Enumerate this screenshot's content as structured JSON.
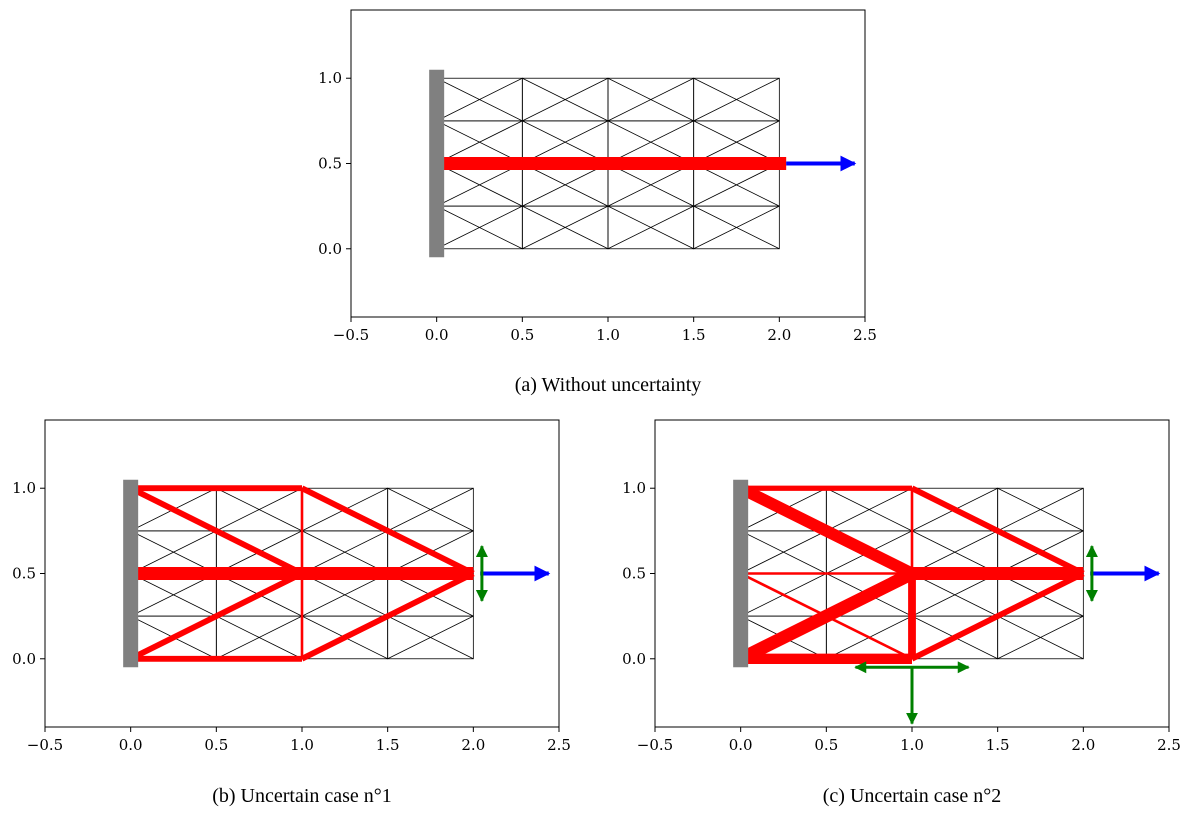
{
  "chart_data": [
    {
      "type": "truss",
      "caption": "(a) Without uncertainty",
      "xlim": [
        -0.5,
        2.5
      ],
      "ylim": [
        -0.4,
        1.4
      ],
      "xticks": [
        "−0.5",
        "0.0",
        "0.5",
        "1.0",
        "1.5",
        "2.0",
        "2.5"
      ],
      "xtick_values": [
        -0.5,
        0.0,
        0.5,
        1.0,
        1.5,
        2.0,
        2.5
      ],
      "yticks": [
        "0.0",
        "0.5",
        "1.0"
      ],
      "ytick_values": [
        0.0,
        0.5,
        1.0
      ],
      "grid": {
        "x0": 0,
        "x1": 2,
        "nx": 4,
        "y0": 0,
        "y1": 1,
        "ny": 4
      },
      "support": {
        "x": 0,
        "y_from": -0.05,
        "y_to": 1.05,
        "color": "#808080"
      },
      "members": [
        {
          "from": [
            0,
            0.5
          ],
          "to": [
            2.04,
            0.5
          ],
          "weight": 1.0
        }
      ],
      "loads": [
        {
          "at": [
            2.04,
            0.5
          ],
          "dir": [
            1,
            0
          ],
          "length": 0.4,
          "color": "#0000ff",
          "two_way": false
        }
      ]
    },
    {
      "type": "truss",
      "caption": "(b) Uncertain case n°1",
      "xlim": [
        -0.5,
        2.5
      ],
      "ylim": [
        -0.4,
        1.4
      ],
      "xticks": [
        "−0.5",
        "0.0",
        "0.5",
        "1.0",
        "1.5",
        "2.0",
        "2.5"
      ],
      "xtick_values": [
        -0.5,
        0.0,
        0.5,
        1.0,
        1.5,
        2.0,
        2.5
      ],
      "yticks": [
        "0.0",
        "0.5",
        "1.0"
      ],
      "ytick_values": [
        0.0,
        0.5,
        1.0
      ],
      "grid": {
        "x0": 0,
        "x1": 2,
        "nx": 4,
        "y0": 0,
        "y1": 1,
        "ny": 4
      },
      "support": {
        "x": 0,
        "y_from": -0.05,
        "y_to": 1.05,
        "color": "#808080"
      },
      "members": [
        {
          "from": [
            0,
            0.5
          ],
          "to": [
            2.0,
            0.5
          ],
          "weight": 1.0
        },
        {
          "from": [
            0,
            1
          ],
          "to": [
            1,
            1
          ],
          "weight": 0.45
        },
        {
          "from": [
            0,
            0
          ],
          "to": [
            1,
            0
          ],
          "weight": 0.45
        },
        {
          "from": [
            0,
            1
          ],
          "to": [
            1,
            0.5
          ],
          "weight": 0.45
        },
        {
          "from": [
            0,
            0
          ],
          "to": [
            1,
            0.5
          ],
          "weight": 0.45
        },
        {
          "from": [
            1,
            1
          ],
          "to": [
            2,
            0.5
          ],
          "weight": 0.45
        },
        {
          "from": [
            1,
            0
          ],
          "to": [
            2,
            0.5
          ],
          "weight": 0.45
        },
        {
          "from": [
            1,
            0
          ],
          "to": [
            1,
            1
          ],
          "weight": 0.2
        }
      ],
      "loads": [
        {
          "at": [
            2.04,
            0.5
          ],
          "dir": [
            1,
            0
          ],
          "length": 0.4,
          "color": "#0000ff",
          "two_way": false
        },
        {
          "at": [
            2.05,
            0.5
          ],
          "dir": [
            0,
            1
          ],
          "length": 0.16,
          "color": "#008000",
          "two_way": true
        }
      ]
    },
    {
      "type": "truss",
      "caption": "(c) Uncertain case n°2",
      "xlim": [
        -0.5,
        2.5
      ],
      "ylim": [
        -0.4,
        1.4
      ],
      "xticks": [
        "−0.5",
        "0.0",
        "0.5",
        "1.0",
        "1.5",
        "2.0",
        "2.5"
      ],
      "xtick_values": [
        -0.5,
        0.0,
        0.5,
        1.0,
        1.5,
        2.0,
        2.5
      ],
      "yticks": [
        "0.0",
        "0.5",
        "1.0"
      ],
      "ytick_values": [
        0.0,
        0.5,
        1.0
      ],
      "grid": {
        "x0": 0,
        "x1": 2,
        "nx": 4,
        "y0": 0,
        "y1": 1,
        "ny": 4
      },
      "support": {
        "x": 0,
        "y_from": -0.05,
        "y_to": 1.05,
        "color": "#808080"
      },
      "members": [
        {
          "from": [
            1,
            0.5
          ],
          "to": [
            2.0,
            0.5
          ],
          "weight": 1.0
        },
        {
          "from": [
            0,
            1
          ],
          "to": [
            1,
            0.5
          ],
          "weight": 0.9
        },
        {
          "from": [
            0,
            0
          ],
          "to": [
            1,
            0.5
          ],
          "weight": 1.0
        },
        {
          "from": [
            0,
            0
          ],
          "to": [
            1,
            0
          ],
          "weight": 0.8
        },
        {
          "from": [
            1,
            0
          ],
          "to": [
            1,
            0.5
          ],
          "weight": 0.6
        },
        {
          "from": [
            0,
            1
          ],
          "to": [
            1,
            1
          ],
          "weight": 0.4
        },
        {
          "from": [
            1,
            1
          ],
          "to": [
            2,
            0.5
          ],
          "weight": 0.45
        },
        {
          "from": [
            1,
            0
          ],
          "to": [
            2,
            0.5
          ],
          "weight": 0.45
        },
        {
          "from": [
            1,
            0.5
          ],
          "to": [
            1,
            1
          ],
          "weight": 0.2
        },
        {
          "from": [
            0,
            0.5
          ],
          "to": [
            1,
            0.5
          ],
          "weight": 0.2
        },
        {
          "from": [
            0,
            0.5
          ],
          "to": [
            1,
            0
          ],
          "weight": 0.2
        }
      ],
      "loads": [
        {
          "at": [
            2.04,
            0.5
          ],
          "dir": [
            1,
            0
          ],
          "length": 0.4,
          "color": "#0000ff",
          "two_way": false
        },
        {
          "at": [
            2.05,
            0.5
          ],
          "dir": [
            0,
            1
          ],
          "length": 0.16,
          "color": "#008000",
          "two_way": true
        },
        {
          "at": [
            1.0,
            -0.05
          ],
          "dir": [
            1,
            0
          ],
          "length": 0.33,
          "color": "#008000",
          "two_way": true
        },
        {
          "at": [
            1.0,
            -0.05
          ],
          "dir": [
            0,
            -1
          ],
          "length": 0.33,
          "color": "#008000",
          "two_way": false
        }
      ]
    }
  ]
}
